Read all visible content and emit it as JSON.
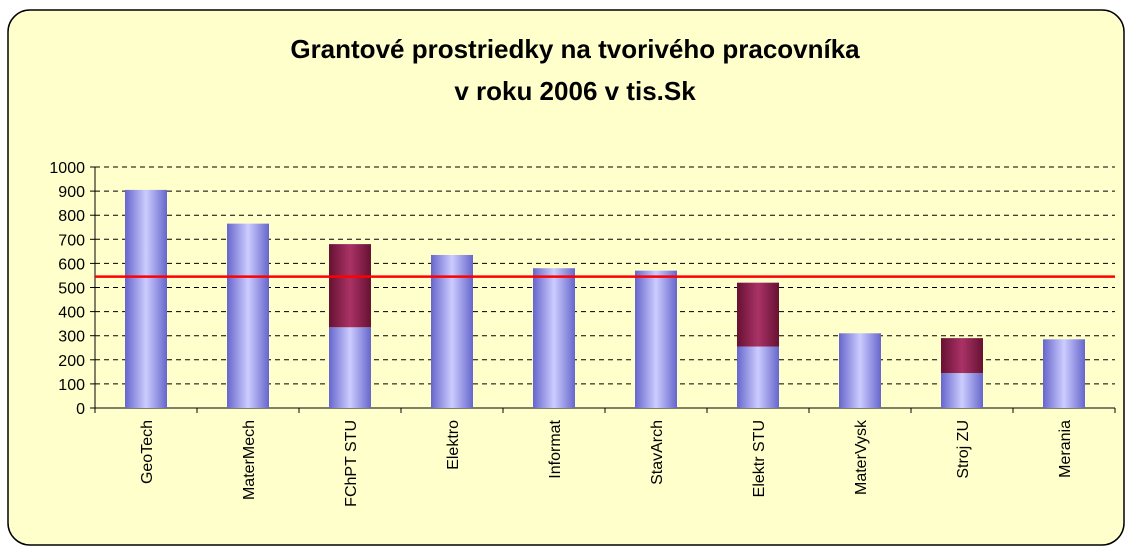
{
  "chart_data": {
    "type": "stacked_bar",
    "title": [
      "Grantové prostriedky na tvorivého pracovníka",
      "v roku 2006 v tis.Sk"
    ],
    "categories": [
      "GeoTech",
      "MaterMech",
      "FChPT STU",
      "Elektro",
      "Informat",
      "StavArch",
      "Elektr STU",
      "MaterVysk",
      "Stroj ZU",
      "Merania"
    ],
    "series": [
      {
        "color": "#9999ff",
        "values": [
          905,
          765,
          335,
          635,
          580,
          570,
          255,
          310,
          145,
          285
        ]
      },
      {
        "color": "#993366",
        "values": [
          0,
          0,
          345,
          0,
          0,
          0,
          265,
          0,
          145,
          0
        ]
      }
    ],
    "ylim": [
      0,
      1000
    ],
    "yticks": [
      0,
      100,
      200,
      300,
      400,
      500,
      600,
      700,
      800,
      900,
      1000
    ],
    "grid": true,
    "hline": 545,
    "hline_color": "#ff0000",
    "background": "#ffffcc"
  }
}
